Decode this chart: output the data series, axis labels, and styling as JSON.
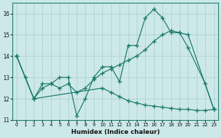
{
  "bg_color": "#cce8e8",
  "grid_color": "#aacccc",
  "line_color": "#1a7a6a",
  "marker": "+",
  "xlabel": "Humidex (Indice chaleur)",
  "ylim": [
    11,
    16.5
  ],
  "xlim": [
    -0.5,
    23.5
  ],
  "yticks": [
    11,
    12,
    13,
    14,
    15,
    16
  ],
  "xticks": [
    0,
    1,
    2,
    3,
    4,
    5,
    6,
    7,
    8,
    9,
    10,
    11,
    12,
    13,
    14,
    15,
    16,
    17,
    18,
    19,
    20,
    21,
    22,
    23
  ],
  "line1_x": [
    0,
    1,
    2,
    3,
    4,
    5,
    6,
    7,
    8,
    9,
    10,
    11,
    12,
    13,
    14,
    15,
    16,
    17,
    18,
    19,
    20,
    22,
    23
  ],
  "line1_y": [
    14.0,
    13.0,
    12.0,
    12.7,
    12.7,
    13.0,
    13.0,
    11.2,
    12.0,
    13.0,
    13.5,
    13.5,
    12.8,
    14.5,
    14.5,
    15.8,
    16.2,
    15.8,
    15.1,
    15.1,
    14.4,
    12.7,
    11.5
  ],
  "line2_x": [
    0,
    2,
    3,
    4,
    5,
    6,
    7,
    8,
    9,
    10,
    11,
    12,
    13,
    14,
    15,
    16,
    17,
    18,
    19,
    20,
    23
  ],
  "line2_y": [
    14.0,
    12.0,
    12.5,
    12.7,
    12.5,
    12.7,
    12.3,
    12.5,
    12.9,
    13.2,
    13.4,
    13.6,
    13.8,
    14.0,
    14.3,
    14.7,
    15.0,
    15.2,
    15.1,
    15.0,
    11.5
  ],
  "line3_x": [
    0,
    2,
    10,
    11,
    12,
    13,
    14,
    15,
    16,
    17,
    18,
    19,
    20,
    21,
    22,
    23
  ],
  "line3_y": [
    14.0,
    12.0,
    12.5,
    12.3,
    12.1,
    11.9,
    11.8,
    11.7,
    11.65,
    11.6,
    11.55,
    11.5,
    11.5,
    11.45,
    11.45,
    11.5
  ]
}
